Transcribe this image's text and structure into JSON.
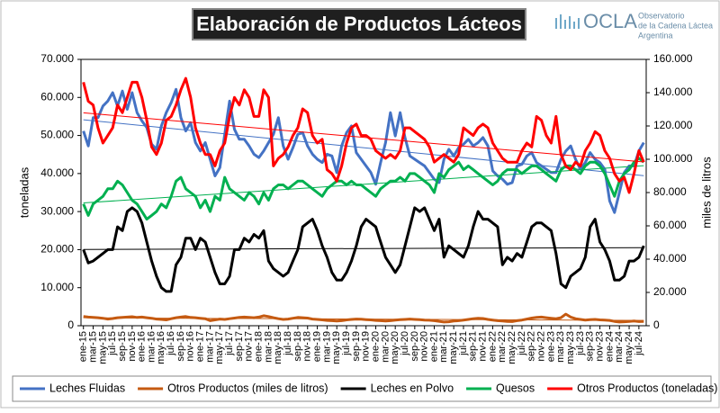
{
  "chart_data": {
    "type": "line",
    "title": "Elaboración de Productos Lácteos",
    "logo": {
      "name": "OCLA",
      "lines": [
        "Observatorio",
        "de la Cadena Láctea",
        "Argentina"
      ]
    },
    "ylabel": "toneladas",
    "y2label": "miles de litros",
    "ylim": [
      0,
      70000
    ],
    "yticks": [
      0,
      {
        "value": 10000,
        "label": "10.000"
      },
      {
        "value": 20000,
        "label": "20.000"
      },
      {
        "value": 30000,
        "label": "30.000"
      },
      {
        "value": 40000,
        "label": "40.000"
      },
      {
        "value": 50000,
        "label": "50.000"
      },
      {
        "value": 60000,
        "label": "60.000"
      },
      {
        "value": 70000,
        "label": "70.000"
      }
    ],
    "y2lim": [
      0,
      160000
    ],
    "y2ticks": [
      0,
      {
        "value": 20000,
        "label": "20.000"
      },
      {
        "value": 40000,
        "label": "40.000"
      },
      {
        "value": 60000,
        "label": "60.000"
      },
      {
        "value": 80000,
        "label": "80.000"
      },
      {
        "value": 100000,
        "label": "100.000"
      },
      {
        "value": 120000,
        "label": "120.000"
      },
      {
        "value": 140000,
        "label": "140.000"
      },
      {
        "value": 160000,
        "label": "160.000"
      }
    ],
    "trendlines": true,
    "categories": [
      "ene-15",
      null,
      "mar-15",
      null,
      "may-15",
      null,
      "jul-15",
      null,
      "sep-15",
      null,
      "nov-15",
      null,
      "ene-16",
      null,
      "mar-16",
      null,
      "may-16",
      null,
      "jul-16",
      null,
      "sep-16",
      null,
      "nov-16",
      null,
      "ene-17",
      null,
      "mar-17",
      null,
      "may-17",
      null,
      "jul-17",
      null,
      "sep-17",
      null,
      "nov-17",
      null,
      "ene-18",
      null,
      "mar-18",
      null,
      "may-18",
      null,
      "jul-18",
      null,
      "sep-18",
      null,
      "nov-18",
      null,
      "ene-19",
      null,
      "mar-19",
      null,
      "may-19",
      null,
      "jul-19",
      null,
      "sep-19",
      null,
      "nov-19",
      null,
      "ene-20",
      null,
      "mar-20",
      null,
      "may-20",
      null,
      "jul-20",
      null,
      "sep-20",
      null,
      "nov-20",
      null,
      "ene-21",
      null,
      "mar-21",
      null,
      "may-21",
      null,
      "jul-21",
      null,
      "sep-21",
      null,
      "nov-21",
      null,
      "ene-22",
      null,
      "mar-22",
      null,
      "may-22",
      null,
      "jul-22",
      null,
      "sep-22",
      null,
      "nov-22",
      null,
      "ene-23",
      null,
      "mar-23",
      null,
      "may-23",
      null,
      "jul-23",
      null,
      "sep-23",
      null,
      "nov-23",
      null,
      "ene-24",
      null,
      "mar-24",
      null,
      "may-24",
      null,
      "jul-24",
      null
    ],
    "series": [
      {
        "name": "Leches Fluidas",
        "color": "#4472c4",
        "axis": "y2",
        "values": [
          117000,
          108000,
          125000,
          125000,
          132000,
          135000,
          140000,
          132000,
          141000,
          130000,
          140000,
          128000,
          123000,
          119000,
          109000,
          106000,
          120000,
          128000,
          134000,
          142000,
          125000,
          117000,
          122000,
          110000,
          105000,
          110000,
          100000,
          90000,
          95000,
          115000,
          135000,
          118000,
          112000,
          112000,
          108000,
          103000,
          101000,
          105000,
          110000,
          115000,
          125000,
          108000,
          100000,
          107000,
          115000,
          116000,
          108000,
          103000,
          100000,
          98000,
          103000,
          102000,
          92000,
          108000,
          116000,
          120000,
          104000,
          100000,
          96000,
          92000,
          85000,
          98000,
          110000,
          128000,
          114000,
          128000,
          113000,
          102000,
          100000,
          98000,
          96000,
          92000,
          88000,
          86000,
          100000,
          106000,
          102000,
          107000,
          109000,
          112000,
          108000,
          110000,
          113000,
          108000,
          93000,
          90000,
          88000,
          85000,
          86000,
          96000,
          97000,
          102000,
          104000,
          98000,
          96000,
          94000,
          92000,
          92000,
          100000,
          105000,
          108000,
          100000,
          94000,
          98000,
          104000,
          100000,
          98000,
          94000,
          75000,
          68000,
          80000,
          92000,
          96000,
          96000,
          105000,
          110000
        ]
      },
      {
        "name": "Otros Productos (miles de litros)",
        "color": "#c55a11",
        "axis": "y2",
        "values": [
          5500,
          5200,
          5000,
          4800,
          4500,
          4000,
          4300,
          4800,
          5000,
          5200,
          5400,
          5000,
          5200,
          4800,
          4500,
          4000,
          3800,
          3500,
          4200,
          4800,
          5200,
          5500,
          5000,
          4800,
          4500,
          4200,
          3000,
          3500,
          4000,
          3800,
          4200,
          4600,
          5000,
          5200,
          5000,
          4800,
          5200,
          6000,
          5500,
          4800,
          4200,
          3800,
          4000,
          4500,
          5000,
          4800,
          4600,
          4000,
          3800,
          3500,
          3200,
          3000,
          2800,
          3000,
          3500,
          3800,
          4000,
          3900,
          3700,
          3500,
          3200,
          3000,
          2800,
          3000,
          3400,
          3600,
          3800,
          4000,
          3800,
          3600,
          3400,
          3300,
          3000,
          2600,
          2200,
          2400,
          2800,
          3000,
          3400,
          3800,
          4200,
          4500,
          4300,
          3800,
          3400,
          3000,
          2800,
          2600,
          2500,
          3000,
          3400,
          4000,
          4600,
          5000,
          5200,
          4800,
          4500,
          4200,
          4800,
          7000,
          5200,
          4200,
          3800,
          3400,
          3600,
          3800,
          3500,
          3400,
          3200,
          2600,
          2200,
          2400,
          2600,
          2800,
          2500,
          2600
        ]
      },
      {
        "name": "Leches en Polvo",
        "color": "#000000",
        "values": [
          20000,
          16500,
          17000,
          18000,
          19000,
          20000,
          20000,
          26000,
          25000,
          30000,
          31000,
          30000,
          27000,
          22000,
          17000,
          13000,
          10000,
          9000,
          9000,
          16000,
          18000,
          23000,
          23000,
          20000,
          23000,
          22000,
          18000,
          14000,
          11000,
          11000,
          13000,
          20000,
          20000,
          23000,
          22000,
          24000,
          23000,
          25000,
          17000,
          15000,
          14000,
          13000,
          14000,
          17000,
          20000,
          26000,
          27000,
          28000,
          25000,
          21000,
          18000,
          14000,
          12000,
          12000,
          14000,
          17000,
          21000,
          26000,
          28000,
          27000,
          26000,
          22000,
          18000,
          16000,
          14000,
          16000,
          21000,
          26000,
          31000,
          30000,
          31000,
          28000,
          25000,
          28000,
          18000,
          21000,
          20000,
          19000,
          18000,
          21000,
          26000,
          30000,
          28000,
          28000,
          27000,
          26000,
          16000,
          18000,
          17000,
          19000,
          18000,
          22000,
          26000,
          27000,
          27000,
          26000,
          25000,
          19000,
          11000,
          10000,
          13000,
          14000,
          15000,
          18000,
          26000,
          28000,
          22000,
          20000,
          17000,
          12000,
          12000,
          13000,
          17000,
          17000,
          18000,
          21000
        ]
      },
      {
        "name": "Quesos",
        "color": "#00b050",
        "values": [
          32000,
          29000,
          32000,
          33000,
          34000,
          36000,
          36000,
          38000,
          37000,
          35000,
          33000,
          32000,
          30000,
          28000,
          29000,
          30000,
          32000,
          31000,
          34000,
          38000,
          39000,
          36000,
          35000,
          34000,
          31000,
          33000,
          30000,
          34000,
          33000,
          39000,
          36000,
          35000,
          34000,
          33000,
          35000,
          34000,
          32000,
          35000,
          33000,
          36000,
          37000,
          37000,
          36000,
          37000,
          38000,
          38000,
          37000,
          36000,
          35000,
          34000,
          36000,
          37000,
          38000,
          38000,
          37000,
          38000,
          37000,
          37000,
          36000,
          35000,
          34000,
          36000,
          37000,
          38000,
          38000,
          39000,
          38000,
          40000,
          40000,
          39000,
          38000,
          37000,
          35000,
          40000,
          39000,
          41000,
          42000,
          43000,
          41000,
          42000,
          41000,
          40000,
          39000,
          38000,
          37000,
          38000,
          40000,
          41000,
          41000,
          41000,
          40000,
          41000,
          42000,
          42000,
          41000,
          40000,
          39000,
          38000,
          41000,
          42000,
          42000,
          41000,
          40000,
          42000,
          43000,
          43000,
          42000,
          40000,
          37000,
          34000,
          38000,
          40000,
          41000,
          43000,
          44000,
          43000
        ]
      },
      {
        "name": "Otros Productos (toneladas)",
        "color": "#ff0000",
        "values": [
          64000,
          59000,
          58000,
          52000,
          48000,
          50000,
          52000,
          58000,
          56000,
          60000,
          64000,
          64000,
          60000,
          54000,
          47000,
          45000,
          48000,
          54000,
          55000,
          58000,
          62000,
          65000,
          60000,
          52000,
          48000,
          45000,
          45000,
          42000,
          46000,
          48000,
          55000,
          60000,
          58000,
          62000,
          60000,
          55000,
          55000,
          62000,
          60000,
          42000,
          44000,
          45000,
          47000,
          50000,
          52000,
          57000,
          56000,
          50000,
          48000,
          49000,
          41000,
          40000,
          38000,
          42000,
          48000,
          52000,
          53000,
          50000,
          50000,
          49000,
          46000,
          45000,
          44000,
          45000,
          44000,
          46000,
          52000,
          52000,
          51000,
          50000,
          49000,
          47000,
          43000,
          44000,
          45000,
          44000,
          43000,
          45000,
          52000,
          51000,
          50000,
          52000,
          53000,
          52000,
          48000,
          46000,
          44000,
          43000,
          43000,
          43000,
          46000,
          48000,
          47000,
          55000,
          54000,
          50000,
          48000,
          55000,
          45000,
          42000,
          41000,
          43000,
          42000,
          46000,
          48000,
          51000,
          50000,
          46000,
          44000,
          40000,
          38000,
          39000,
          35000,
          40000,
          46000,
          43000
        ]
      }
    ]
  }
}
